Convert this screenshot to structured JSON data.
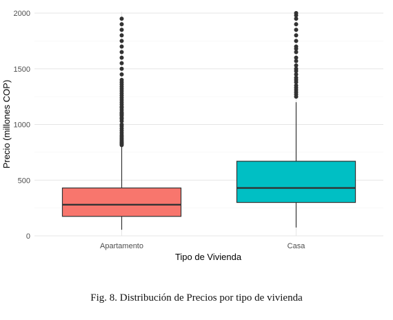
{
  "caption": "Fig. 8.  Distribución de Precios por tipo de vivienda",
  "chart_data": {
    "type": "boxplot",
    "xlabel": "Tipo de Vivienda",
    "ylabel": "Precio (millones COP)",
    "ylim": [
      0,
      2000
    ],
    "y_ticks": [
      0,
      500,
      1000,
      1500,
      2000
    ],
    "grid": true,
    "categories": [
      "Apartamento",
      "Casa"
    ],
    "boxes": [
      {
        "category": "Apartamento",
        "color": "#F8766D",
        "min": 55,
        "q1": 175,
        "median": 280,
        "q3": 430,
        "max": 810,
        "outliers": [
          815,
          825,
          835,
          845,
          860,
          875,
          890,
          905,
          925,
          945,
          965,
          985,
          1000,
          1030,
          1050,
          1060,
          1080,
          1090,
          1100,
          1110,
          1130,
          1150,
          1160,
          1180,
          1200,
          1220,
          1240,
          1260,
          1280,
          1300,
          1320,
          1340,
          1360,
          1380,
          1400,
          1450,
          1500,
          1550,
          1600,
          1650,
          1700,
          1750,
          1800,
          1850,
          1900,
          1950
        ]
      },
      {
        "category": "Casa",
        "color": "#00BFC4",
        "min": 75,
        "q1": 300,
        "median": 430,
        "q3": 670,
        "max": 1200,
        "outliers": [
          1250,
          1270,
          1290,
          1310,
          1330,
          1350,
          1380,
          1400,
          1420,
          1450,
          1480,
          1500,
          1530,
          1570,
          1600,
          1650,
          1680,
          1700,
          1750,
          1800,
          1850,
          1900,
          1950,
          1980,
          2000
        ]
      }
    ]
  }
}
